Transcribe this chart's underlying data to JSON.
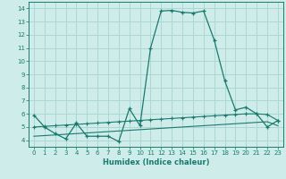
{
  "xlabel": "Humidex (Indice chaleur)",
  "background_color": "#cdecea",
  "grid_color": "#aed6d3",
  "line_color": "#1a7a6e",
  "xlim": [
    -0.5,
    23.5
  ],
  "ylim": [
    3.5,
    14.5
  ],
  "xticks": [
    0,
    1,
    2,
    3,
    4,
    5,
    6,
    7,
    8,
    9,
    10,
    11,
    12,
    13,
    14,
    15,
    16,
    17,
    18,
    19,
    20,
    21,
    22,
    23
  ],
  "yticks": [
    4,
    5,
    6,
    7,
    8,
    9,
    10,
    11,
    12,
    13,
    14
  ],
  "line1_x": [
    0,
    1,
    2,
    3,
    4,
    5,
    6,
    7,
    8,
    9,
    10,
    11,
    12,
    13,
    14,
    15,
    16,
    17,
    18,
    19,
    20,
    21,
    22,
    23
  ],
  "line1_y": [
    5.9,
    5.0,
    4.5,
    4.1,
    5.3,
    4.3,
    4.3,
    4.3,
    3.9,
    6.4,
    5.1,
    11.0,
    13.8,
    13.85,
    13.7,
    13.65,
    13.8,
    11.6,
    8.5,
    6.3,
    6.5,
    6.0,
    5.0,
    5.5
  ],
  "line2_x": [
    0,
    1,
    2,
    3,
    4,
    5,
    6,
    7,
    8,
    9,
    10,
    11,
    12,
    13,
    14,
    15,
    16,
    17,
    18,
    19,
    20,
    21,
    22,
    23
  ],
  "line2_y": [
    5.0,
    5.05,
    5.1,
    5.15,
    5.2,
    5.25,
    5.3,
    5.35,
    5.4,
    5.45,
    5.5,
    5.55,
    5.6,
    5.65,
    5.7,
    5.75,
    5.8,
    5.85,
    5.9,
    5.95,
    6.0,
    6.0,
    5.95,
    5.5
  ],
  "line3_x": [
    0,
    1,
    2,
    3,
    4,
    5,
    6,
    7,
    8,
    9,
    10,
    11,
    12,
    13,
    14,
    15,
    16,
    17,
    18,
    19,
    20,
    21,
    22,
    23
  ],
  "line3_y": [
    4.3,
    4.35,
    4.4,
    4.45,
    4.5,
    4.55,
    4.6,
    4.65,
    4.7,
    4.75,
    4.8,
    4.85,
    4.9,
    4.95,
    5.0,
    5.05,
    5.1,
    5.15,
    5.2,
    5.25,
    5.3,
    5.35,
    5.4,
    5.1
  ]
}
